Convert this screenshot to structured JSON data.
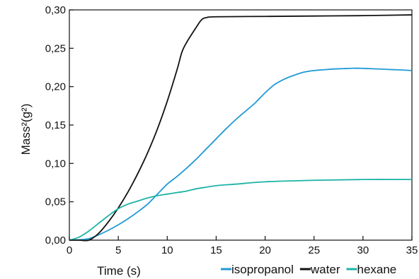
{
  "chart_data": {
    "type": "line",
    "title": "",
    "xlabel": "Time (s)",
    "ylabel": "Mass²(g²)",
    "xlim": [
      0,
      35
    ],
    "ylim": [
      0,
      0.3
    ],
    "grid": false,
    "legend_position": "bottom-right",
    "x_ticks": [
      0,
      5,
      10,
      15,
      20,
      25,
      30,
      35
    ],
    "x_tick_labels": [
      "0",
      "5",
      "10",
      "15",
      "20",
      "25",
      "30",
      "35"
    ],
    "y_ticks": [
      0,
      0.05,
      0.1,
      0.15,
      0.2,
      0.25,
      0.3
    ],
    "y_tick_labels": [
      "0,00",
      "0,05",
      "0,10",
      "0,15",
      "0,20",
      "0,25",
      "0,30"
    ],
    "series": [
      {
        "name": "isopropanol",
        "color": "#1f9ad6",
        "x": [
          0,
          1,
          2,
          3,
          4,
          5,
          6,
          7,
          8,
          9,
          10,
          11,
          12,
          13,
          14,
          15,
          16,
          17,
          18,
          19,
          20,
          21,
          22,
          23,
          24,
          25,
          26,
          27,
          28,
          29,
          30,
          31,
          32,
          33,
          34,
          35
        ],
        "y": [
          0,
          0.0005,
          0.002,
          0.007,
          0.013,
          0.02,
          0.028,
          0.037,
          0.047,
          0.06,
          0.073,
          0.083,
          0.094,
          0.106,
          0.119,
          0.132,
          0.145,
          0.157,
          0.168,
          0.179,
          0.192,
          0.203,
          0.21,
          0.215,
          0.219,
          0.221,
          0.222,
          0.223,
          0.2235,
          0.224,
          0.2238,
          0.2233,
          0.2228,
          0.2222,
          0.2217,
          0.221
        ]
      },
      {
        "name": "water",
        "color": "#111111",
        "x": [
          0,
          1,
          2,
          3,
          4,
          5,
          6,
          7,
          8,
          9,
          10,
          11,
          11.5,
          12,
          13,
          13.5,
          14,
          15,
          20,
          25,
          30,
          35
        ],
        "y": [
          0,
          0,
          0,
          0.009,
          0.024,
          0.042,
          0.063,
          0.087,
          0.114,
          0.145,
          0.181,
          0.222,
          0.245,
          0.258,
          0.278,
          0.287,
          0.29,
          0.291,
          0.2915,
          0.292,
          0.2925,
          0.2935
        ]
      },
      {
        "name": "hexane",
        "color": "#1db3a6",
        "x": [
          0,
          1,
          2,
          3,
          4,
          5,
          6,
          7,
          8,
          9,
          10,
          11,
          12,
          13,
          14,
          15,
          17,
          20,
          25,
          30,
          35
        ],
        "y": [
          0,
          0.004,
          0.012,
          0.022,
          0.032,
          0.041,
          0.047,
          0.051,
          0.055,
          0.058,
          0.06,
          0.062,
          0.064,
          0.067,
          0.069,
          0.071,
          0.073,
          0.076,
          0.078,
          0.079,
          0.079
        ]
      }
    ]
  }
}
